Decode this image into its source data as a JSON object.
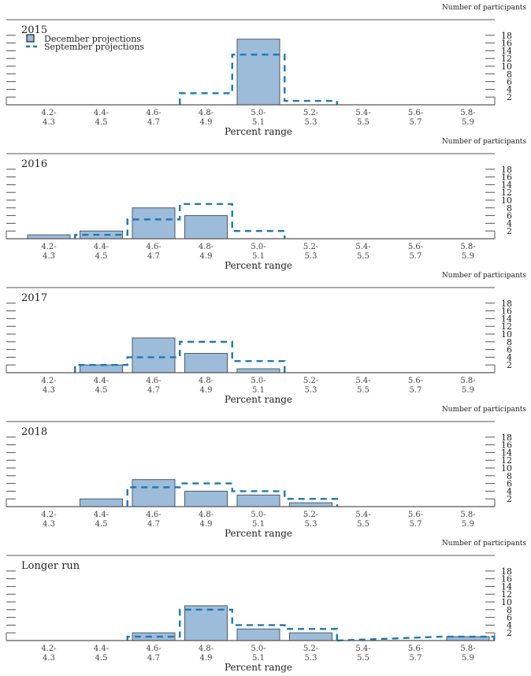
{
  "chart_data": {
    "type": "bar",
    "y_axis_label": "Number of participants",
    "x_axis_label": "Percent range",
    "yticks": [
      2,
      4,
      6,
      8,
      10,
      12,
      14,
      16,
      18
    ],
    "ylim": [
      0,
      19
    ],
    "categories": [
      {
        "top": "4.2-",
        "bottom": "4.3"
      },
      {
        "top": "4.4-",
        "bottom": "4.5"
      },
      {
        "top": "4.6-",
        "bottom": "4.7"
      },
      {
        "top": "4.8-",
        "bottom": "4.9"
      },
      {
        "top": "5.0-",
        "bottom": "5.1"
      },
      {
        "top": "5.2-",
        "bottom": "5.3"
      },
      {
        "top": "5.4-",
        "bottom": "5.5"
      },
      {
        "top": "5.6-",
        "bottom": "5.7"
      },
      {
        "top": "5.8-",
        "bottom": "5.9"
      }
    ],
    "legend": {
      "position": "top-left",
      "entries": [
        {
          "name": "December projections",
          "style": "bar"
        },
        {
          "name": "September projections",
          "style": "dashed-line"
        }
      ]
    },
    "colors": {
      "bar_fill": "#9dbcda",
      "bar_stroke": "#4a5a6a",
      "dashed": "#1a7ab5",
      "axis": "#555555"
    },
    "panels": [
      {
        "title": "2015",
        "series": [
          {
            "name": "December projections",
            "values": [
              0,
              0,
              0,
              0,
              17,
              0,
              0,
              0,
              0
            ]
          },
          {
            "name": "September projections",
            "values": [
              0,
              0,
              0,
              3,
              13,
              1,
              0,
              0,
              0
            ]
          }
        ]
      },
      {
        "title": "2016",
        "series": [
          {
            "name": "December projections",
            "values": [
              1,
              2,
              8,
              6,
              0,
              0,
              0,
              0,
              0
            ]
          },
          {
            "name": "September projections",
            "values": [
              0,
              1,
              5,
              9,
              2,
              0,
              0,
              0,
              0
            ]
          }
        ]
      },
      {
        "title": "2017",
        "series": [
          {
            "name": "December projections",
            "values": [
              0,
              2,
              9,
              5,
              1,
              0,
              0,
              0,
              0
            ]
          },
          {
            "name": "September projections",
            "values": [
              0,
              2,
              4,
              8,
              3,
              0,
              0,
              0,
              0
            ]
          }
        ]
      },
      {
        "title": "2018",
        "series": [
          {
            "name": "December projections",
            "values": [
              0,
              2,
              7,
              4,
              3,
              1,
              0,
              0,
              0
            ]
          },
          {
            "name": "September projections",
            "values": [
              0,
              0,
              5,
              6,
              4,
              2,
              0,
              0,
              0
            ]
          }
        ]
      },
      {
        "title": "Longer run",
        "series": [
          {
            "name": "December projections",
            "values": [
              0,
              0,
              2,
              9,
              3,
              2,
              0,
              0,
              1
            ]
          },
          {
            "name": "September projections",
            "values": [
              0,
              0,
              1,
              8,
              4,
              3,
              0,
              0,
              1
            ]
          }
        ]
      }
    ]
  }
}
